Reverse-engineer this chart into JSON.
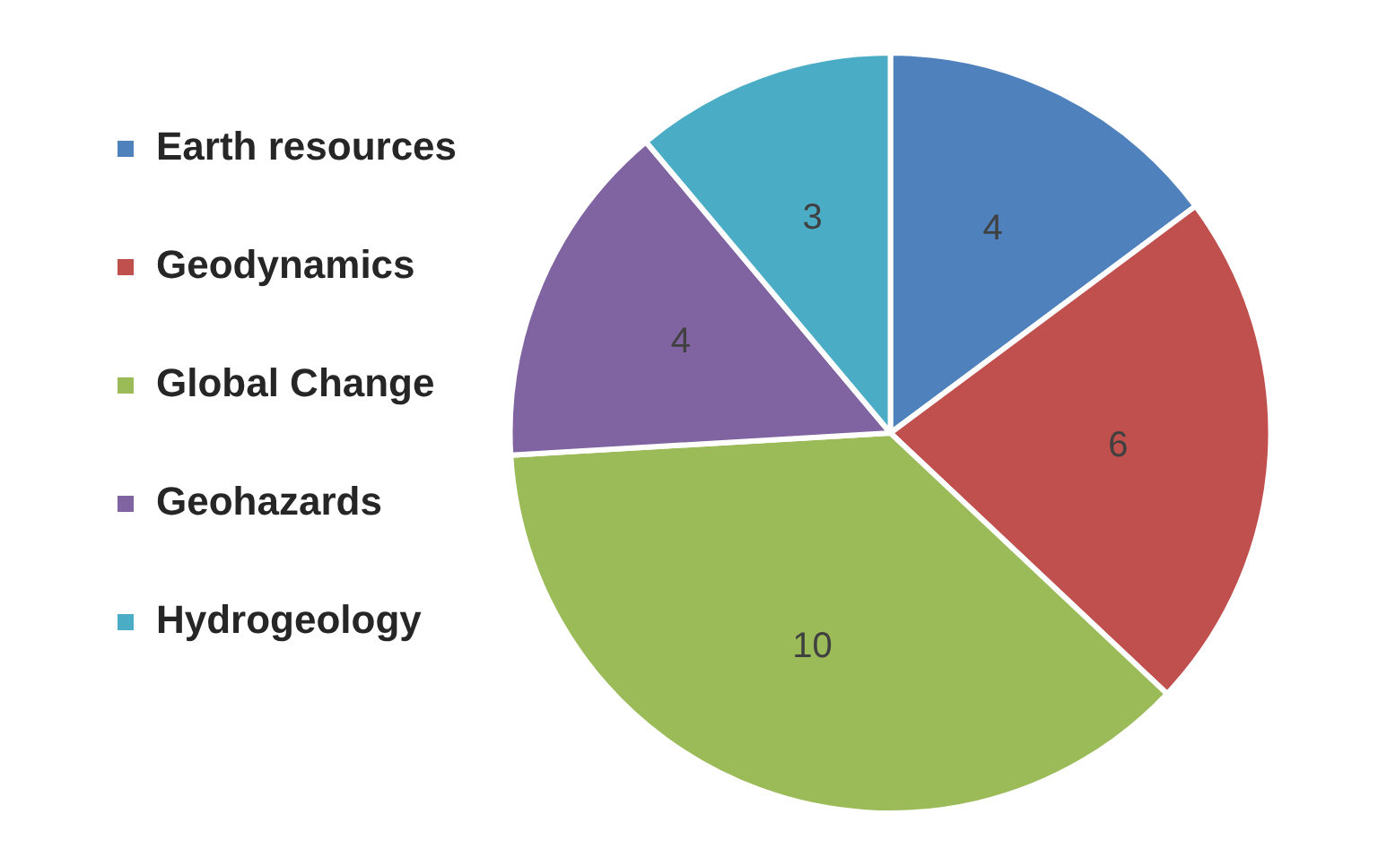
{
  "chart_data": {
    "type": "pie",
    "categories": [
      "Earth resources",
      "Geodynamics",
      "Global Change",
      "Geohazards",
      "Hydrogeology"
    ],
    "values": [
      4,
      6,
      10,
      4,
      3
    ],
    "colors": [
      "#4f81bd",
      "#c0504d",
      "#9bbb59",
      "#8064a2",
      "#4bacc6"
    ],
    "legend": "left",
    "data_labels": true
  }
}
